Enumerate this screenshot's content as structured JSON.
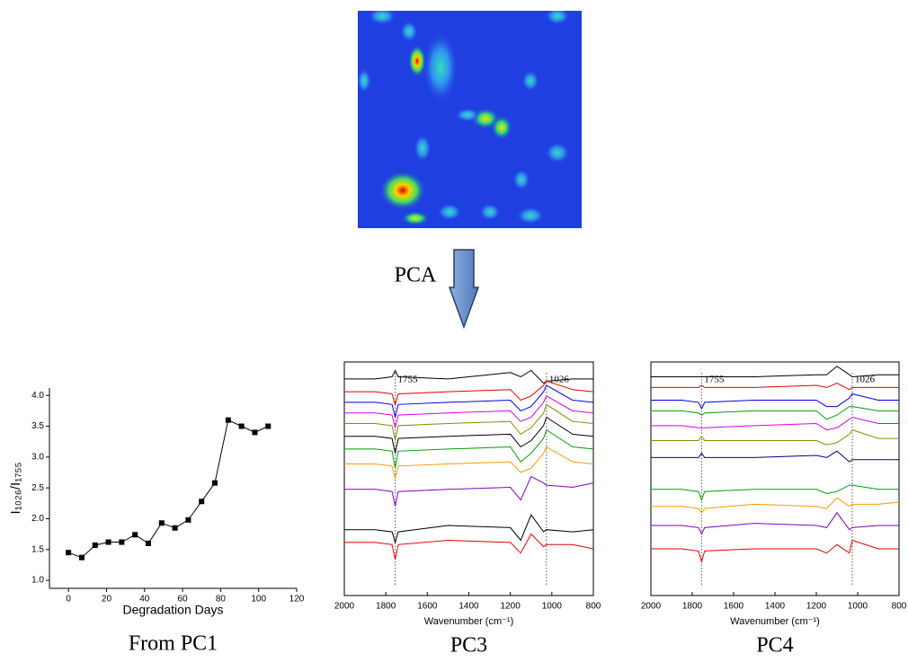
{
  "chart_data": [
    {
      "type": "line",
      "markers": true,
      "box": false,
      "color": "#000000",
      "xlabel": "Degradation Days",
      "ylabel": "I₁₀₂₆/I₁₇₅₅",
      "caption": "From PC1",
      "x": [
        0,
        7,
        14,
        21,
        28,
        35,
        42,
        49,
        56,
        63,
        70,
        77,
        84,
        91,
        98,
        105
      ],
      "values": [
        1.45,
        1.37,
        1.57,
        1.62,
        1.62,
        1.74,
        1.6,
        1.93,
        1.85,
        1.98,
        2.28,
        2.58,
        3.6,
        3.5,
        3.4,
        3.5
      ],
      "xlim": [
        -10,
        120
      ],
      "xticks": [
        0,
        20,
        40,
        60,
        80,
        100,
        120
      ],
      "ylim": [
        0.87,
        4.12
      ],
      "yticks": [
        {
          "value": 1,
          "label": "1.0"
        },
        {
          "value": 1.5,
          "label": "1.5"
        },
        {
          "value": 2,
          "label": "2.0"
        },
        {
          "value": 2.5,
          "label": "2.5"
        },
        {
          "value": 3,
          "label": "3.0"
        },
        {
          "value": 3.5,
          "label": "3.5"
        },
        {
          "value": 4,
          "label": "4.0"
        }
      ]
    },
    {
      "type": "line",
      "markers": false,
      "box": true,
      "xlabel": "Wavenumber (cm⁻¹)",
      "caption": "PC3",
      "vlines": [
        1755,
        1026
      ],
      "x": [
        2000,
        1850,
        1770,
        1755,
        1740,
        1500,
        1200,
        1150,
        1100,
        1040,
        1026,
        900,
        800
      ],
      "xlim": [
        2000,
        800
      ],
      "xticks": [
        2000,
        1800,
        1600,
        1400,
        1200,
        1000,
        800
      ],
      "ylim": [
        0,
        11
      ],
      "series": [
        {
          "color": "#000000",
          "values": [
            10.2,
            10.2,
            10.3,
            10.6,
            10.3,
            10.2,
            10.5,
            10.3,
            10.6,
            10.0,
            10.1,
            10.2,
            10.2
          ]
        },
        {
          "color": "#e00000",
          "values": [
            9.6,
            9.6,
            9.5,
            9.0,
            9.5,
            9.6,
            9.7,
            9.2,
            9.4,
            9.9,
            10.1,
            9.7,
            9.6
          ]
        },
        {
          "color": "#0000e0",
          "values": [
            9.1,
            9.1,
            9.0,
            8.4,
            9.0,
            9.1,
            9.2,
            8.7,
            8.9,
            9.6,
            9.9,
            9.2,
            9.1
          ]
        },
        {
          "color": "#e000e0",
          "values": [
            8.6,
            8.6,
            8.5,
            7.9,
            8.5,
            8.6,
            8.7,
            8.2,
            8.4,
            9.1,
            9.4,
            8.7,
            8.6
          ]
        },
        {
          "color": "#8a8a00",
          "values": [
            8.1,
            8.1,
            8.0,
            7.3,
            8.0,
            8.1,
            8.2,
            7.6,
            7.9,
            8.6,
            9.0,
            8.2,
            8.1
          ]
        },
        {
          "color": "#000000",
          "values": [
            7.5,
            7.5,
            7.4,
            6.7,
            7.4,
            7.5,
            7.6,
            7.0,
            7.3,
            8.0,
            8.4,
            7.6,
            7.5
          ]
        },
        {
          "color": "#00a000",
          "values": [
            6.9,
            6.9,
            6.8,
            6.0,
            6.8,
            6.9,
            7.0,
            6.3,
            6.7,
            7.4,
            7.8,
            7.0,
            6.9
          ]
        },
        {
          "color": "#ff9900",
          "values": [
            6.2,
            6.2,
            6.1,
            5.5,
            6.1,
            6.2,
            6.3,
            5.8,
            6.0,
            6.7,
            7.0,
            6.3,
            6.2
          ]
        },
        {
          "color": "#8000c0",
          "values": [
            5.0,
            5.0,
            4.9,
            4.2,
            4.9,
            5.0,
            5.1,
            4.5,
            5.6,
            5.3,
            5.2,
            5.1,
            5.3
          ]
        },
        {
          "color": "#000000",
          "values": [
            3.1,
            3.1,
            3.0,
            2.5,
            3.0,
            3.3,
            3.2,
            2.6,
            3.8,
            3.0,
            3.1,
            3.0,
            3.1
          ]
        },
        {
          "color": "#e00000",
          "values": [
            2.5,
            2.5,
            2.4,
            1.7,
            2.4,
            2.6,
            2.5,
            2.0,
            2.9,
            2.3,
            2.4,
            2.4,
            2.2
          ]
        }
      ]
    },
    {
      "type": "line",
      "markers": false,
      "box": true,
      "xlabel": "Wavenumber (cm⁻¹)",
      "caption": "PC4",
      "vlines": [
        1755,
        1026
      ],
      "x": [
        2000,
        1850,
        1770,
        1755,
        1740,
        1500,
        1200,
        1150,
        1100,
        1040,
        1026,
        900,
        800
      ],
      "xlim": [
        2000,
        800
      ],
      "xticks": [
        2000,
        1800,
        1600,
        1400,
        1200,
        1000,
        800
      ],
      "ylim": [
        0,
        11
      ],
      "series": [
        {
          "color": "#000000",
          "values": [
            10.3,
            10.3,
            10.3,
            10.3,
            10.3,
            10.3,
            10.4,
            10.4,
            10.8,
            10.4,
            10.3,
            10.4,
            10.4
          ]
        },
        {
          "color": "#e00000",
          "values": [
            9.8,
            9.8,
            9.8,
            9.9,
            9.8,
            9.8,
            9.9,
            9.8,
            10.0,
            9.7,
            9.8,
            9.8,
            9.8
          ]
        },
        {
          "color": "#0000e0",
          "values": [
            9.2,
            9.2,
            9.1,
            8.8,
            9.1,
            9.2,
            9.2,
            8.9,
            8.9,
            9.3,
            9.5,
            9.2,
            9.2
          ]
        },
        {
          "color": "#00a000",
          "values": [
            8.7,
            8.7,
            8.6,
            8.5,
            8.6,
            8.7,
            8.7,
            8.3,
            8.5,
            8.9,
            8.9,
            8.7,
            8.7
          ]
        },
        {
          "color": "#e000e0",
          "values": [
            8.0,
            8.0,
            7.9,
            7.9,
            7.9,
            8.0,
            8.1,
            7.8,
            7.9,
            8.3,
            8.4,
            8.1,
            8.1
          ]
        },
        {
          "color": "#8a8a00",
          "values": [
            7.3,
            7.3,
            7.3,
            7.5,
            7.3,
            7.3,
            7.3,
            7.1,
            7.2,
            7.6,
            7.8,
            7.4,
            7.4
          ]
        },
        {
          "color": "#000080",
          "values": [
            6.5,
            6.5,
            6.5,
            6.7,
            6.5,
            6.5,
            6.6,
            6.5,
            6.8,
            6.3,
            6.4,
            6.4,
            6.4
          ]
        },
        {
          "color": "#00a000",
          "values": [
            5.0,
            5.0,
            4.9,
            4.5,
            4.9,
            5.0,
            5.0,
            4.8,
            4.9,
            5.2,
            5.2,
            5.0,
            5.0
          ]
        },
        {
          "color": "#ff9900",
          "values": [
            4.2,
            4.2,
            4.1,
            3.9,
            4.1,
            4.3,
            4.2,
            4.1,
            4.6,
            4.2,
            4.3,
            4.3,
            4.4
          ]
        },
        {
          "color": "#8000c0",
          "values": [
            3.3,
            3.3,
            3.2,
            2.9,
            3.2,
            3.4,
            3.3,
            3.2,
            3.9,
            3.1,
            3.2,
            3.3,
            3.3
          ]
        },
        {
          "color": "#e00000",
          "values": [
            2.2,
            2.2,
            2.1,
            1.6,
            2.1,
            2.2,
            2.2,
            2.0,
            2.4,
            2.0,
            2.6,
            2.2,
            2.2
          ]
        }
      ]
    }
  ],
  "pca_label": "PCA"
}
